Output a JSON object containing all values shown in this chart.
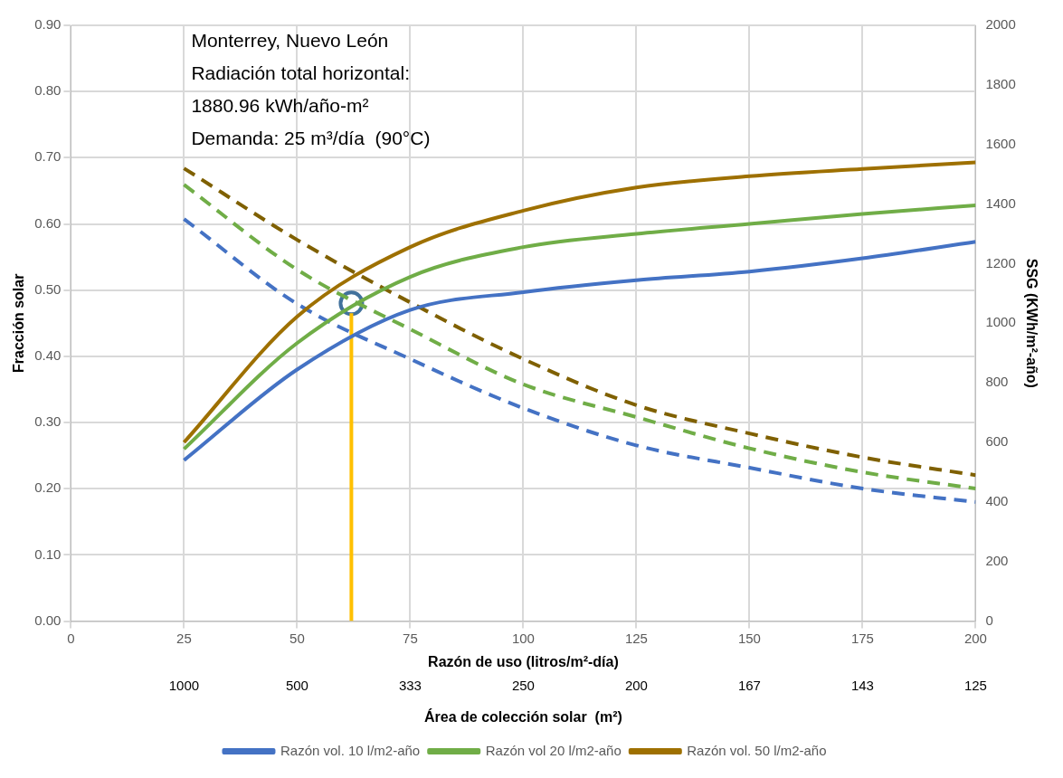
{
  "chart_data": {
    "type": "line",
    "xlabel": "Razón de uso (litros/m²-día)",
    "ylabel": "Fracción solar",
    "y2label": "SSG (KWh/m²-año)",
    "x2label": "Área de colección solar  (m²)",
    "annotations": [
      "Monterrey, Nuevo León",
      "Radiación total horizontal:",
      "1880.96 kWh/año-m²",
      "Demanda: 25 m³/día  (90°C)",
      "1000",
      "500",
      "333",
      "250",
      "200",
      "167",
      "143",
      "125"
    ],
    "xlim": [
      0,
      200
    ],
    "xticks": [
      0,
      25,
      50,
      75,
      100,
      125,
      150,
      175,
      200
    ],
    "ylim": [
      0,
      0.9
    ],
    "yticks": [
      {
        "value": 0,
        "label": "0.00"
      },
      {
        "value": 0.1,
        "label": "0.10"
      },
      {
        "value": 0.2,
        "label": "0.20"
      },
      {
        "value": 0.3,
        "label": "0.30"
      },
      {
        "value": 0.4,
        "label": "0.40"
      },
      {
        "value": 0.5,
        "label": "0.50"
      },
      {
        "value": 0.6,
        "label": "0.60"
      },
      {
        "value": 0.7,
        "label": "0.70"
      },
      {
        "value": 0.8,
        "label": "0.80"
      },
      {
        "value": 0.9,
        "label": "0.90"
      }
    ],
    "y2lim": [
      0,
      2000
    ],
    "y2ticks": [
      0,
      200,
      400,
      600,
      800,
      1000,
      1200,
      1400,
      1600,
      1800,
      2000
    ],
    "grid": true,
    "legend": "bottom",
    "series": [
      {
        "name": "Razón vol. 10 l/m2-año",
        "color": "#4472c4",
        "line_style": "solid",
        "x": [
          25,
          50,
          75,
          100,
          125,
          150,
          175,
          200
        ],
        "values": [
          0.243,
          0.38,
          0.47,
          0.497,
          0.515,
          0.528,
          0.548,
          0.573
        ]
      },
      {
        "name": "Razón vol 20 l/m2-año",
        "color": "#70ad47",
        "line_style": "solid",
        "x": [
          25,
          50,
          75,
          100,
          125,
          150,
          175,
          200
        ],
        "values": [
          0.26,
          0.42,
          0.52,
          0.565,
          0.585,
          0.6,
          0.615,
          0.628
        ]
      },
      {
        "name": "Razón vol. 50 l/m2-año",
        "color": "#9e7000",
        "line_style": "solid",
        "x": [
          25,
          50,
          75,
          100,
          125,
          150,
          175,
          200
        ],
        "values": [
          0.27,
          0.46,
          0.565,
          0.62,
          0.655,
          0.672,
          0.683,
          0.693
        ]
      },
      {
        "color": "#4472c4",
        "line_style": "dashed",
        "axis": "y2",
        "x": [
          25,
          50,
          75,
          100,
          125,
          150,
          175,
          200
        ],
        "values": [
          1350,
          1065,
          880,
          715,
          590,
          515,
          445,
          400
        ]
      },
      {
        "color": "#70ad47",
        "line_style": "dashed",
        "axis": "y2",
        "x": [
          25,
          50,
          75,
          100,
          125,
          150,
          175,
          200
        ],
        "values": [
          1465,
          1180,
          980,
          795,
          685,
          580,
          500,
          445
        ]
      },
      {
        "color": "#7f6000",
        "line_style": "dashed",
        "axis": "y2",
        "x": [
          25,
          50,
          75,
          100,
          125,
          150,
          175,
          200
        ],
        "values": [
          1520,
          1280,
          1070,
          880,
          725,
          630,
          550,
          490
        ]
      },
      {
        "color": "#ffc000",
        "line_style": "solid",
        "x": [
          62,
          62
        ],
        "values": [
          0,
          0.465
        ]
      },
      {
        "type": "scatter",
        "color": "#41719c",
        "marker": "circle",
        "x": [
          62
        ],
        "values": [
          0.48
        ]
      }
    ]
  }
}
